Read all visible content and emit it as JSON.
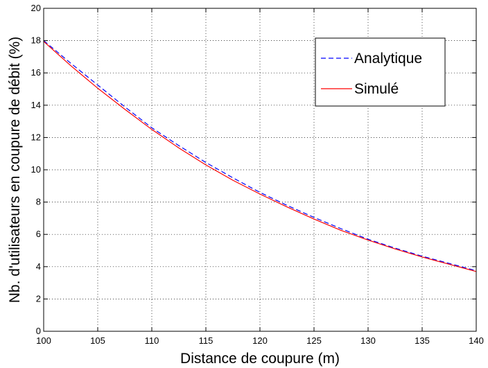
{
  "chart_data": {
    "type": "line",
    "title": "",
    "xlabel": "Distance de coupure  (m)",
    "ylabel": "Nb. d'utilisateurs en coupure de débit (%)",
    "xlim": [
      100,
      140
    ],
    "ylim": [
      0,
      20
    ],
    "grid": true,
    "legend_position": "top-right",
    "x_ticks": [
      "100",
      "105",
      "110",
      "115",
      "120",
      "125",
      "130",
      "135",
      "140"
    ],
    "y_ticks": [
      "0",
      "2",
      "4",
      "6",
      "8",
      "10",
      "12",
      "14",
      "16",
      "18",
      "20"
    ],
    "x": [
      100,
      102.5,
      105,
      107.5,
      110,
      112.5,
      115,
      117.5,
      120,
      122.5,
      125,
      127.5,
      130,
      132.5,
      135,
      137.5,
      140
    ],
    "series": [
      {
        "name": "Analytique",
        "color": "#0000ff",
        "style": "dashed",
        "values": [
          18.0,
          16.6,
          15.25,
          13.9,
          12.6,
          11.5,
          10.45,
          9.5,
          8.6,
          7.8,
          7.05,
          6.35,
          5.7,
          5.15,
          4.65,
          4.2,
          3.75
        ]
      },
      {
        "name": "Simulé",
        "color": "#ff0000",
        "style": "solid",
        "values": [
          17.95,
          16.45,
          15.05,
          13.75,
          12.5,
          11.35,
          10.3,
          9.35,
          8.5,
          7.7,
          6.95,
          6.25,
          5.65,
          5.1,
          4.6,
          4.15,
          3.7
        ]
      }
    ]
  }
}
